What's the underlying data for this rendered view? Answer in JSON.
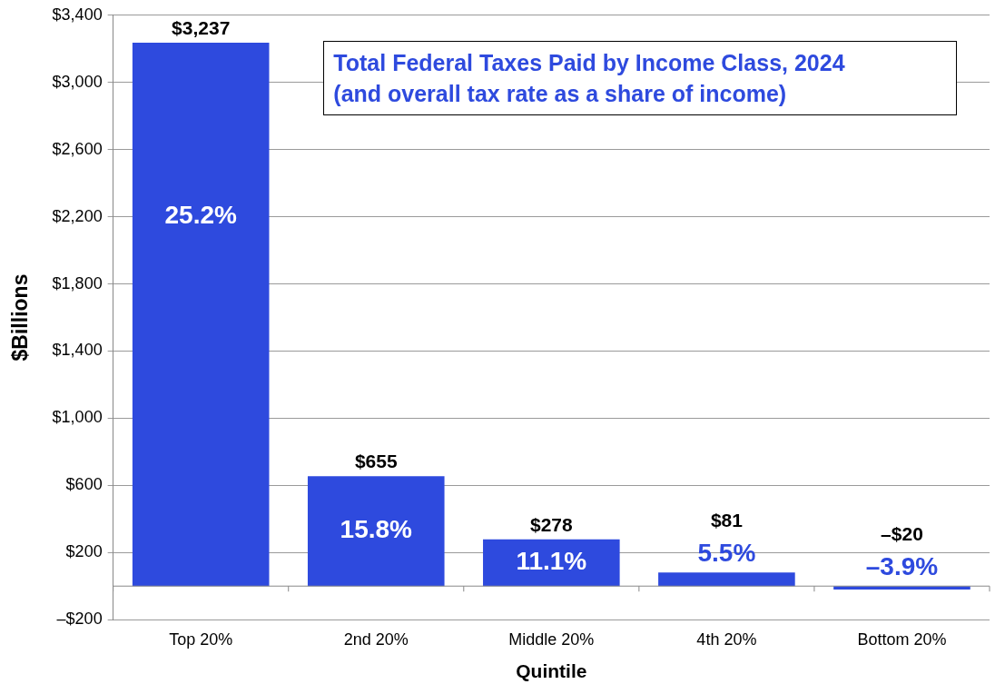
{
  "chart_data": {
    "type": "bar",
    "title": "Total Federal Taxes Paid by Income Class, 2024",
    "subtitle": "(and overall tax rate as a share of income)",
    "xlabel": "Quintile",
    "ylabel": "$Billions",
    "categories": [
      "Top 20%",
      "2nd 20%",
      "Middle 20%",
      "4th 20%",
      "Bottom 20%"
    ],
    "values": [
      3237,
      655,
      278,
      81,
      -20
    ],
    "value_labels": [
      "$3,237",
      "$655",
      "$278",
      "$81",
      "–$20"
    ],
    "color": "#2e4ade",
    "ylim": [
      -200,
      3400
    ],
    "yticks": [
      {
        "value": -200,
        "label": "–$200"
      },
      {
        "value": 200,
        "label": "$200"
      },
      {
        "value": 600,
        "label": "$600"
      },
      {
        "value": 1000,
        "label": "$1,000"
      },
      {
        "value": 1400,
        "label": "$1,400"
      },
      {
        "value": 1800,
        "label": "$1,800"
      },
      {
        "value": 2200,
        "label": "$2,200"
      },
      {
        "value": 2600,
        "label": "$2,600"
      },
      {
        "value": 3000,
        "label": "$3,000"
      },
      {
        "value": 3400,
        "label": "$3,400"
      }
    ],
    "annotations": [
      "25.2%",
      "15.8%",
      "11.1%",
      "5.5%",
      "–3.9%"
    ],
    "grid": "y",
    "legend": false
  }
}
